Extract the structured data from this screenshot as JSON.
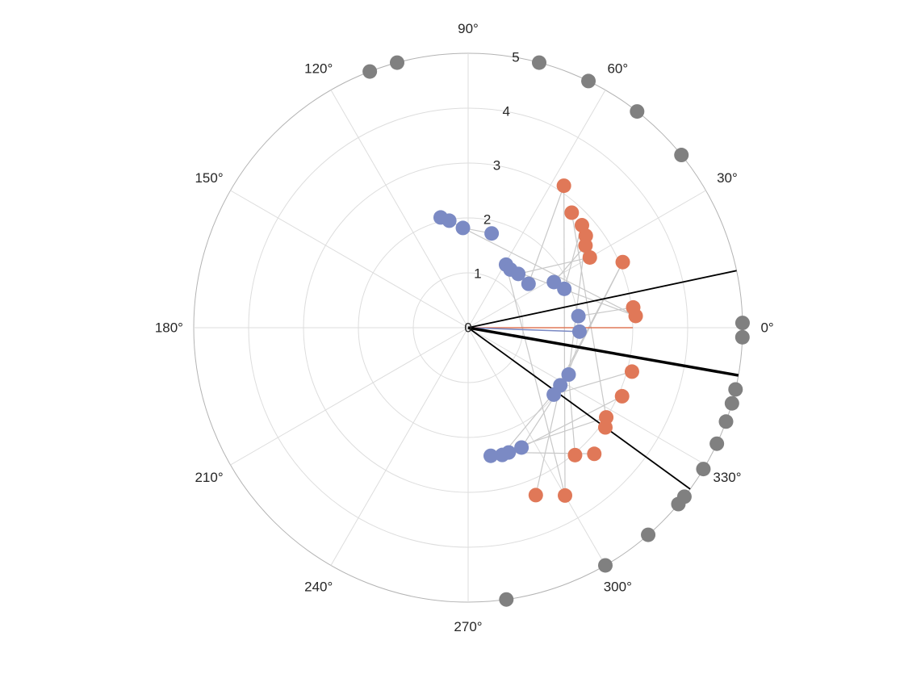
{
  "chart_data": {
    "type": "scatter",
    "coordinate_system": "polar",
    "title": "",
    "theta_unit": "degrees",
    "theta_ticks": [
      "0°",
      "30°",
      "60°",
      "90°",
      "120°",
      "150°",
      "180°",
      "210°",
      "240°",
      "270°",
      "300°",
      "330°"
    ],
    "r_ticks": [
      "0",
      "1",
      "2",
      "3",
      "4",
      "5"
    ],
    "r_tick_angle_deg": 80,
    "rlim": [
      0,
      5
    ],
    "grid": true,
    "colors": {
      "grid": "#dddddd",
      "outer_ring": "#b3b3b3",
      "connector": "#c8c8c8",
      "orange": "#e07858",
      "blue": "#7b8ac4",
      "gray": "#808080",
      "black": "#000000",
      "text": "#262626"
    },
    "reference_lines": [
      {
        "theta": 0,
        "r": 3.0,
        "color": "orange"
      },
      {
        "theta": -2,
        "r": 2.0,
        "color": "blue"
      }
    ],
    "boundary_lines": [
      {
        "theta": 12,
        "r": 5.0,
        "weight": "thin"
      },
      {
        "theta": -10,
        "r": 5.0,
        "weight": "thick"
      },
      {
        "theta": -36,
        "r": 5.0,
        "weight": "thin"
      }
    ],
    "series": [
      {
        "color": "orange",
        "points": [
          {
            "theta": 56,
            "r": 3.12
          },
          {
            "theta": 48,
            "r": 2.82
          },
          {
            "theta": 42,
            "r": 2.79
          },
          {
            "theta": 38,
            "r": 2.72
          },
          {
            "theta": 35,
            "r": 2.61
          },
          {
            "theta": 30,
            "r": 2.56
          },
          {
            "theta": 23,
            "r": 3.06
          },
          {
            "theta": 7,
            "r": 3.03
          },
          {
            "theta": 4,
            "r": 3.06
          },
          {
            "theta": -15,
            "r": 3.09
          },
          {
            "theta": -24,
            "r": 3.07
          },
          {
            "theta": -33,
            "r": 3.0
          },
          {
            "theta": -36,
            "r": 3.09
          },
          {
            "theta": -45,
            "r": 3.25
          },
          {
            "theta": -50,
            "r": 3.03
          },
          {
            "theta": -60,
            "r": 3.53
          },
          {
            "theta": -68,
            "r": 3.29
          }
        ]
      },
      {
        "color": "blue",
        "points": [
          {
            "theta": 104,
            "r": 2.07
          },
          {
            "theta": 100,
            "r": 1.98
          },
          {
            "theta": 93,
            "r": 1.82
          },
          {
            "theta": 76,
            "r": 1.77
          },
          {
            "theta": 59,
            "r": 1.34
          },
          {
            "theta": 54,
            "r": 1.31
          },
          {
            "theta": 47,
            "r": 1.34
          },
          {
            "theta": 36,
            "r": 1.36
          },
          {
            "theta": 28,
            "r": 1.77
          },
          {
            "theta": 22,
            "r": 1.89
          },
          {
            "theta": 6,
            "r": 2.02
          },
          {
            "theta": -2,
            "r": 2.03
          },
          {
            "theta": -25,
            "r": 2.02
          },
          {
            "theta": -32,
            "r": 1.98
          },
          {
            "theta": -38,
            "r": 1.98
          },
          {
            "theta": -66,
            "r": 2.39
          },
          {
            "theta": -72,
            "r": 2.39
          },
          {
            "theta": -75,
            "r": 2.4
          },
          {
            "theta": -80,
            "r": 2.37
          }
        ]
      },
      {
        "color": "gray",
        "points": [
          {
            "theta": 111,
            "r": 5
          },
          {
            "theta": 105,
            "r": 5
          },
          {
            "theta": 75,
            "r": 5
          },
          {
            "theta": 64,
            "r": 5
          },
          {
            "theta": 52,
            "r": 5
          },
          {
            "theta": 39,
            "r": 5
          },
          {
            "theta": 1,
            "r": 5
          },
          {
            "theta": -2,
            "r": 5
          },
          {
            "theta": -13,
            "r": 5
          },
          {
            "theta": -16,
            "r": 5
          },
          {
            "theta": -20,
            "r": 5
          },
          {
            "theta": -25,
            "r": 5
          },
          {
            "theta": -31,
            "r": 5
          },
          {
            "theta": -38,
            "r": 5
          },
          {
            "theta": -40,
            "r": 5
          },
          {
            "theta": -49,
            "r": 5
          },
          {
            "theta": -60,
            "r": 5
          },
          {
            "theta": -82,
            "r": 5
          }
        ]
      }
    ],
    "connectors": [
      {
        "from": [
          56,
          3.12
        ],
        "to": [
          36,
          1.36
        ]
      },
      {
        "from": [
          56,
          3.12
        ],
        "to": [
          -60,
          3.53
        ]
      },
      {
        "from": [
          48,
          2.82
        ],
        "to": [
          -33,
          3.0
        ]
      },
      {
        "from": [
          42,
          2.79
        ],
        "to": [
          22,
          1.89
        ]
      },
      {
        "from": [
          38,
          2.72
        ],
        "to": [
          -25,
          2.02
        ]
      },
      {
        "from": [
          35,
          2.61
        ],
        "to": [
          28,
          1.77
        ]
      },
      {
        "from": [
          30,
          2.56
        ],
        "to": [
          47,
          1.34
        ]
      },
      {
        "from": [
          23,
          3.06
        ],
        "to": [
          -32,
          1.98
        ]
      },
      {
        "from": [
          23,
          3.06
        ],
        "to": [
          -38,
          1.98
        ]
      },
      {
        "from": [
          7,
          3.03
        ],
        "to": [
          6,
          2.02
        ]
      },
      {
        "from": [
          4,
          3.06
        ],
        "to": [
          54,
          1.31
        ]
      },
      {
        "from": [
          4,
          3.06
        ],
        "to": [
          93,
          1.82
        ]
      },
      {
        "from": [
          -15,
          3.09
        ],
        "to": [
          -38,
          1.98
        ]
      },
      {
        "from": [
          -24,
          3.07
        ],
        "to": [
          -66,
          2.39
        ]
      },
      {
        "from": [
          -33,
          3.0
        ],
        "to": [
          -80,
          2.37
        ]
      },
      {
        "from": [
          -45,
          3.25
        ],
        "to": [
          -72,
          2.39
        ]
      },
      {
        "from": [
          -50,
          3.03
        ],
        "to": [
          -25,
          2.02
        ]
      },
      {
        "from": [
          -60,
          3.53
        ],
        "to": [
          59,
          1.34
        ]
      },
      {
        "from": [
          -68,
          3.29
        ],
        "to": [
          -32,
          1.98
        ]
      },
      {
        "from": [
          104,
          2.07
        ],
        "to": [
          100,
          1.98
        ]
      },
      {
        "from": [
          100,
          1.98
        ],
        "to": [
          93,
          1.82
        ]
      },
      {
        "from": [
          93,
          1.82
        ],
        "to": [
          76,
          1.77
        ]
      },
      {
        "from": [
          -66,
          2.39
        ],
        "to": [
          -25,
          2.02
        ]
      },
      {
        "from": [
          -75,
          2.4
        ],
        "to": [
          -32,
          1.98
        ]
      }
    ]
  }
}
